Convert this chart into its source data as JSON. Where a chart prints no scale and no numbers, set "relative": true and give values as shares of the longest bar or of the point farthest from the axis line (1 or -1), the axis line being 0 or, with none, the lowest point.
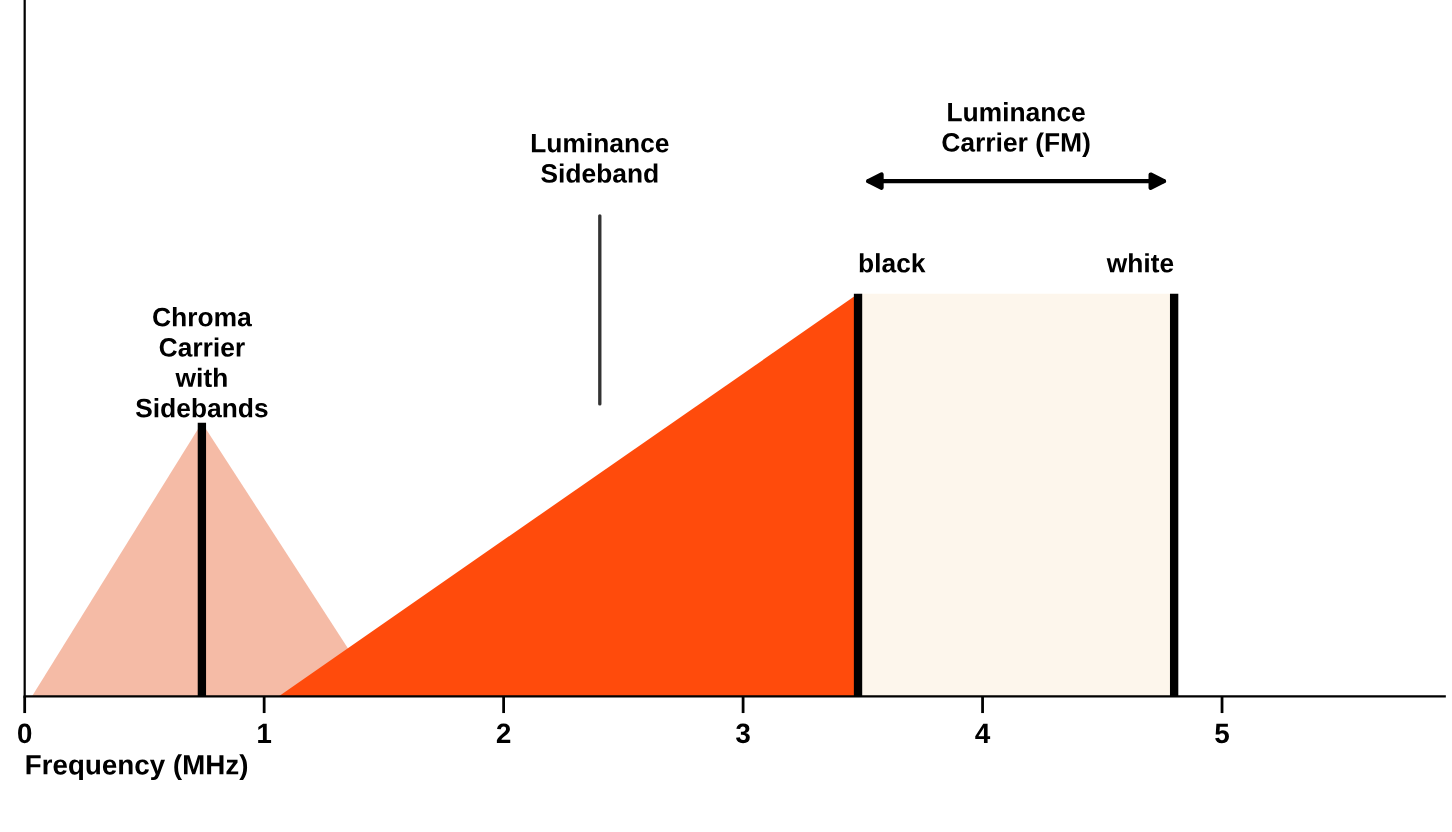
{
  "chart_data": {
    "type": "area",
    "relative": true,
    "xlabel": "Frequency (MHz)",
    "xlim": [
      0,
      5.93
    ],
    "xticks": [
      0,
      1,
      2,
      3,
      4,
      5
    ],
    "grid": false,
    "series": [
      {
        "color": "#f5bba6",
        "x": [
          0.03,
          0.74,
          1.48
        ],
        "values": [
          0,
          0.68,
          0
        ]
      },
      {
        "color": "#ff4b0c",
        "x": [
          1.06,
          3.48,
          3.48
        ],
        "values": [
          0,
          1,
          0
        ]
      },
      {
        "color": "#fdf6ec",
        "x": [
          3.48,
          3.48,
          4.8,
          4.8
        ],
        "values": [
          0,
          1,
          1,
          0
        ]
      },
      {
        "type": "line",
        "color": "#000000",
        "x": [
          0.74,
          0.74
        ],
        "values": [
          0,
          0.68
        ]
      },
      {
        "type": "line",
        "color": "#000000",
        "x": [
          3.48,
          3.48
        ],
        "values": [
          0,
          1
        ]
      },
      {
        "type": "line",
        "color": "#000000",
        "x": [
          4.8,
          4.8
        ],
        "values": [
          0,
          1
        ]
      }
    ],
    "annotations": [
      {
        "text": "Chroma\nCarrier\nwith\nSidebands",
        "x": 0.74,
        "y": 0.68
      },
      "Luminance\nSideband",
      {
        "text": "black",
        "x": 3.48,
        "y": 1
      },
      {
        "text": "white",
        "x": 4.8,
        "y": 1
      },
      "Luminance\nCarrier (FM)"
    ]
  }
}
